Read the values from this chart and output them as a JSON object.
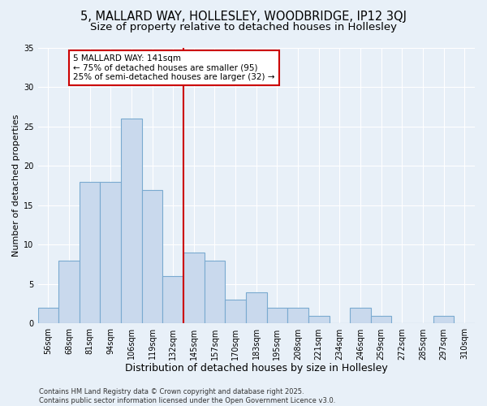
{
  "title1": "5, MALLARD WAY, HOLLESLEY, WOODBRIDGE, IP12 3QJ",
  "title2": "Size of property relative to detached houses in Hollesley",
  "xlabel": "Distribution of detached houses by size in Hollesley",
  "ylabel": "Number of detached properties",
  "categories": [
    "56sqm",
    "68sqm",
    "81sqm",
    "94sqm",
    "106sqm",
    "119sqm",
    "132sqm",
    "145sqm",
    "157sqm",
    "170sqm",
    "183sqm",
    "195sqm",
    "208sqm",
    "221sqm",
    "234sqm",
    "246sqm",
    "259sqm",
    "272sqm",
    "285sqm",
    "297sqm",
    "310sqm"
  ],
  "values": [
    2,
    8,
    18,
    18,
    26,
    17,
    6,
    9,
    8,
    3,
    4,
    2,
    2,
    1,
    0,
    2,
    1,
    0,
    0,
    1,
    0
  ],
  "bar_color": "#c9d9ed",
  "bar_edge_color": "#7aaad0",
  "vline_color": "#cc0000",
  "annotation_text": "5 MALLARD WAY: 141sqm\n← 75% of detached houses are smaller (95)\n25% of semi-detached houses are larger (32) →",
  "annotation_box_color": "#ffffff",
  "annotation_box_edge": "#cc0000",
  "ylim": [
    0,
    35
  ],
  "yticks": [
    0,
    5,
    10,
    15,
    20,
    25,
    30,
    35
  ],
  "bg_color": "#e8f0f8",
  "grid_color": "#c8d8ec",
  "footer": "Contains HM Land Registry data © Crown copyright and database right 2025.\nContains public sector information licensed under the Open Government Licence v3.0.",
  "title1_fontsize": 10.5,
  "title2_fontsize": 9.5,
  "xlabel_fontsize": 9,
  "ylabel_fontsize": 8,
  "tick_fontsize": 7,
  "footer_fontsize": 6,
  "annot_fontsize": 7.5
}
